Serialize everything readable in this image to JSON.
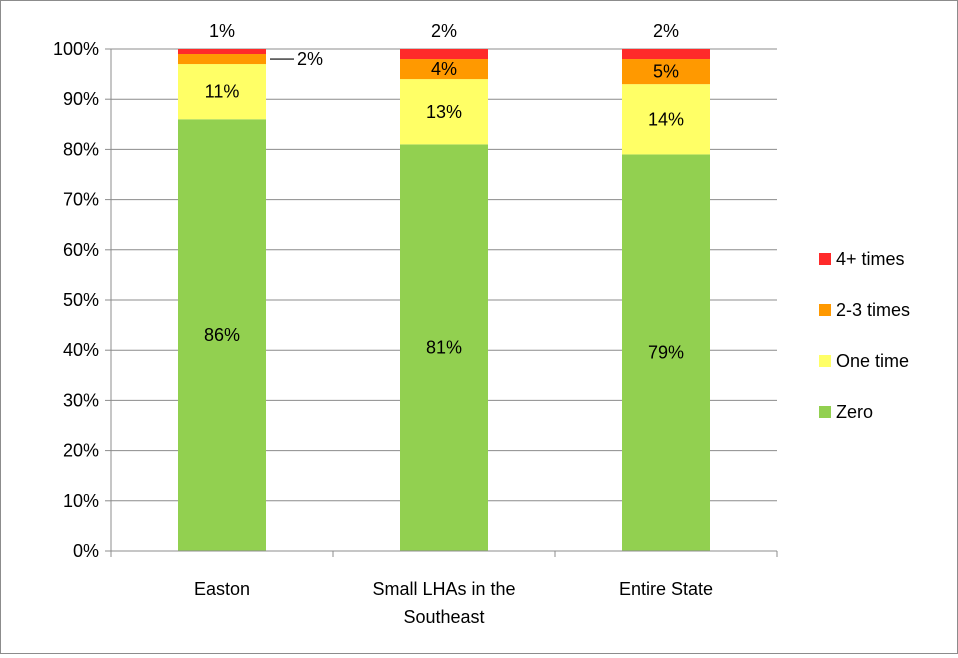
{
  "chart_data": {
    "type": "bar",
    "stacked": true,
    "categories": [
      "Easton",
      "Small LHAs in the Southeast",
      "Entire State"
    ],
    "category_lines": [
      [
        "Easton"
      ],
      [
        "Small LHAs in the",
        "Southeast"
      ],
      [
        "Entire State"
      ]
    ],
    "series": [
      {
        "name": "Zero",
        "values": [
          86,
          81,
          79
        ],
        "labels": [
          "86%",
          "81%",
          "79%"
        ],
        "color": "#92d050"
      },
      {
        "name": "One time",
        "values": [
          11,
          13,
          14
        ],
        "labels": [
          "11%",
          "13%",
          "14%"
        ],
        "color": "#ffff66"
      },
      {
        "name": "2-3 times",
        "values": [
          2,
          4,
          5
        ],
        "labels": [
          "2%",
          "4%",
          "5%"
        ],
        "color": "#ff9900"
      },
      {
        "name": "4+ times",
        "values": [
          1,
          2,
          2
        ],
        "labels": [
          "1%",
          "2%",
          "2%"
        ],
        "color": "#ff2a2a"
      }
    ],
    "ylim": [
      0,
      100
    ],
    "yticks": [
      0,
      10,
      20,
      30,
      40,
      50,
      60,
      70,
      80,
      90,
      100
    ],
    "ytick_labels": [
      "0%",
      "10%",
      "20%",
      "30%",
      "40%",
      "50%",
      "60%",
      "70%",
      "80%",
      "90%",
      "100%"
    ],
    "grid": true,
    "legend_position": "right",
    "title": "",
    "xlabel": "",
    "ylabel": ""
  }
}
